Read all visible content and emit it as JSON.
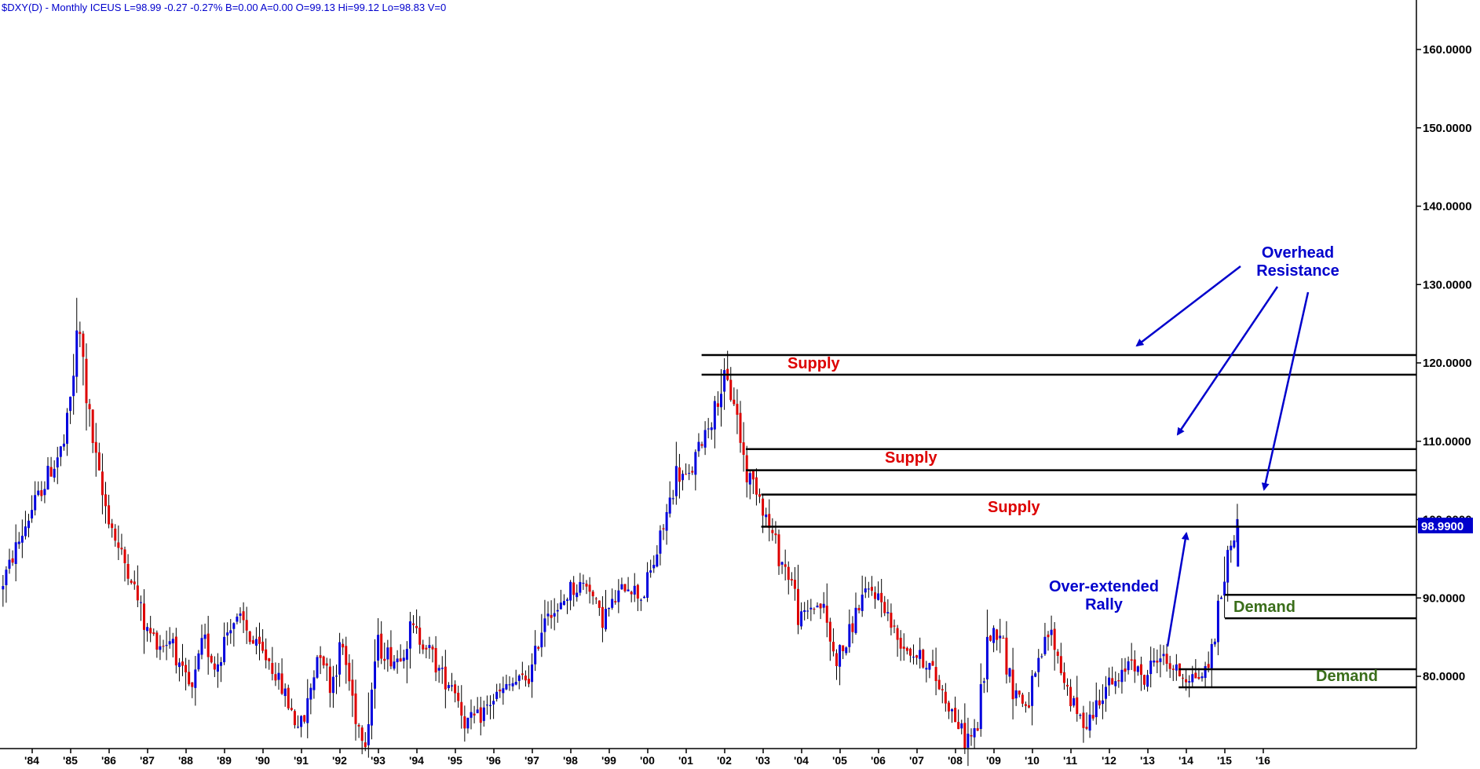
{
  "header": {
    "text": "$DXY(D) - Monthly  ICEUS  L=98.99  -0.27  -0.27%  B=0.00  A=0.00  O=99.13  Hi=99.12  Lo=98.83  V=0"
  },
  "colors": {
    "up_candle": "#0000dd",
    "down_candle": "#dd0000",
    "wick": "#000000",
    "zone_line": "#000000",
    "supply_label": "#dd0000",
    "demand_label": "#3a6e1a",
    "annotation_blue": "#0000cc",
    "last_price_tag": "#0000cc"
  },
  "chart_data": {
    "type": "candlestick",
    "title": "$DXY(D) - Monthly ICEUS",
    "y_tick_labels": [
      "160.0000",
      "150.0000",
      "140.0000",
      "130.0000",
      "120.0000",
      "110.0000",
      "100.0000",
      "90.0000",
      "80.0000"
    ],
    "y_tick_values": [
      160,
      150,
      140,
      130,
      120,
      110,
      100,
      90,
      80
    ],
    "x_tick_labels": [
      "'84",
      "'85",
      "'86",
      "'87",
      "'88",
      "'89",
      "'90",
      "'91",
      "'92",
      "'93",
      "'94",
      "'95",
      "'96",
      "'97",
      "'98",
      "'99",
      "'00",
      "'01",
      "'02",
      "'03",
      "'04",
      "'05",
      "'06",
      "'07",
      "'08",
      "'09",
      "'10",
      "'11",
      "'12",
      "'13",
      "'14",
      "'15",
      "'16"
    ],
    "x_tick_years": [
      1984,
      1985,
      1986,
      1987,
      1988,
      1989,
      1990,
      1991,
      1992,
      1993,
      1994,
      1995,
      1996,
      1997,
      1998,
      1999,
      2000,
      2001,
      2002,
      2003,
      2004,
      2005,
      2006,
      2007,
      2008,
      2009,
      2010,
      2011,
      2012,
      2013,
      2014,
      2015,
      2016
    ],
    "ylim": [
      70,
      165
    ],
    "xlim": [
      1983.2,
      2021.3
    ],
    "last_price": 98.99,
    "last_price_label": "98.9900",
    "price_path": [
      [
        1983.2,
        91
      ],
      [
        1983.6,
        96
      ],
      [
        1984.0,
        101
      ],
      [
        1984.5,
        106
      ],
      [
        1984.9,
        110
      ],
      [
        1985.1,
        118
      ],
      [
        1985.25,
        125
      ],
      [
        1985.5,
        114
      ],
      [
        1985.8,
        104
      ],
      [
        1986.0,
        101
      ],
      [
        1986.3,
        96
      ],
      [
        1986.6,
        93
      ],
      [
        1987.0,
        86
      ],
      [
        1987.4,
        84
      ],
      [
        1987.7,
        85
      ],
      [
        1987.9,
        80
      ],
      [
        1988.2,
        78
      ],
      [
        1988.5,
        85
      ],
      [
        1988.8,
        81
      ],
      [
        1989.2,
        87
      ],
      [
        1989.5,
        87
      ],
      [
        1989.8,
        84
      ],
      [
        1990.2,
        82
      ],
      [
        1990.6,
        78
      ],
      [
        1990.9,
        74
      ],
      [
        1991.1,
        74
      ],
      [
        1991.5,
        84
      ],
      [
        1991.8,
        79
      ],
      [
        1992.1,
        84
      ],
      [
        1992.5,
        74
      ],
      [
        1992.7,
        72
      ],
      [
        1993.0,
        84
      ],
      [
        1993.5,
        82
      ],
      [
        1993.9,
        86
      ],
      [
        1994.3,
        84
      ],
      [
        1994.7,
        80
      ],
      [
        1995.0,
        79
      ],
      [
        1995.3,
        74
      ],
      [
        1995.7,
        75
      ],
      [
        1996.0,
        77
      ],
      [
        1996.5,
        79
      ],
      [
        1997.0,
        80
      ],
      [
        1997.4,
        89
      ],
      [
        1997.7,
        88
      ],
      [
        1998.0,
        91
      ],
      [
        1998.5,
        92
      ],
      [
        1998.8,
        87
      ],
      [
        1999.1,
        89
      ],
      [
        1999.5,
        92
      ],
      [
        1999.9,
        90
      ],
      [
        2000.3,
        96
      ],
      [
        2000.8,
        106
      ],
      [
        2001.1,
        105
      ],
      [
        2001.5,
        111
      ],
      [
        2001.8,
        114
      ],
      [
        2002.0,
        118
      ],
      [
        2002.3,
        115
      ],
      [
        2002.6,
        106
      ],
      [
        2002.9,
        104
      ],
      [
        2003.2,
        99
      ],
      [
        2003.5,
        95
      ],
      [
        2003.8,
        92
      ],
      [
        2004.0,
        87
      ],
      [
        2004.3,
        89
      ],
      [
        2004.6,
        89
      ],
      [
        2004.9,
        82
      ],
      [
        2005.2,
        84
      ],
      [
        2005.6,
        90
      ],
      [
        2005.9,
        91
      ],
      [
        2006.2,
        89
      ],
      [
        2006.5,
        85
      ],
      [
        2006.9,
        83
      ],
      [
        2007.3,
        82
      ],
      [
        2007.7,
        78
      ],
      [
        2008.0,
        75
      ],
      [
        2008.3,
        72
      ],
      [
        2008.6,
        73
      ],
      [
        2008.9,
        85
      ],
      [
        2009.2,
        86
      ],
      [
        2009.5,
        79
      ],
      [
        2009.9,
        76
      ],
      [
        2010.3,
        83
      ],
      [
        2010.5,
        86
      ],
      [
        2010.9,
        79
      ],
      [
        2011.3,
        74
      ],
      [
        2011.6,
        75
      ],
      [
        2011.9,
        79
      ],
      [
        2012.3,
        79
      ],
      [
        2012.6,
        83
      ],
      [
        2012.9,
        79
      ],
      [
        2013.3,
        83
      ],
      [
        2013.7,
        81
      ],
      [
        2014.0,
        80
      ],
      [
        2014.4,
        80
      ],
      [
        2014.6,
        81
      ],
      [
        2014.8,
        86
      ],
      [
        2015.0,
        92
      ],
      [
        2015.2,
        97
      ],
      [
        2015.3,
        99
      ]
    ],
    "zones": [
      {
        "type": "supply",
        "label": "Supply",
        "top": 121.0,
        "bottom": 118.5,
        "x_start": 2001.4
      },
      {
        "type": "supply",
        "label": "Supply",
        "top": 109.0,
        "bottom": 106.3,
        "x_start": 2002.55
      },
      {
        "type": "supply",
        "label": "Supply",
        "top": 103.2,
        "bottom": 99.1,
        "x_start": 2002.95
      },
      {
        "type": "demand",
        "label": "Demand",
        "top": 90.4,
        "bottom": 87.4,
        "x_start": 2015.0
      },
      {
        "type": "demand",
        "label": "Demand",
        "top": 80.9,
        "bottom": 78.6,
        "x_start": 2013.8
      }
    ],
    "annotations": [
      {
        "text_lines": [
          "Overhead",
          "Resistance"
        ],
        "color": "annotation_blue"
      },
      {
        "text_lines": [
          "Over-extended",
          "Rally"
        ],
        "color": "annotation_blue"
      }
    ]
  }
}
